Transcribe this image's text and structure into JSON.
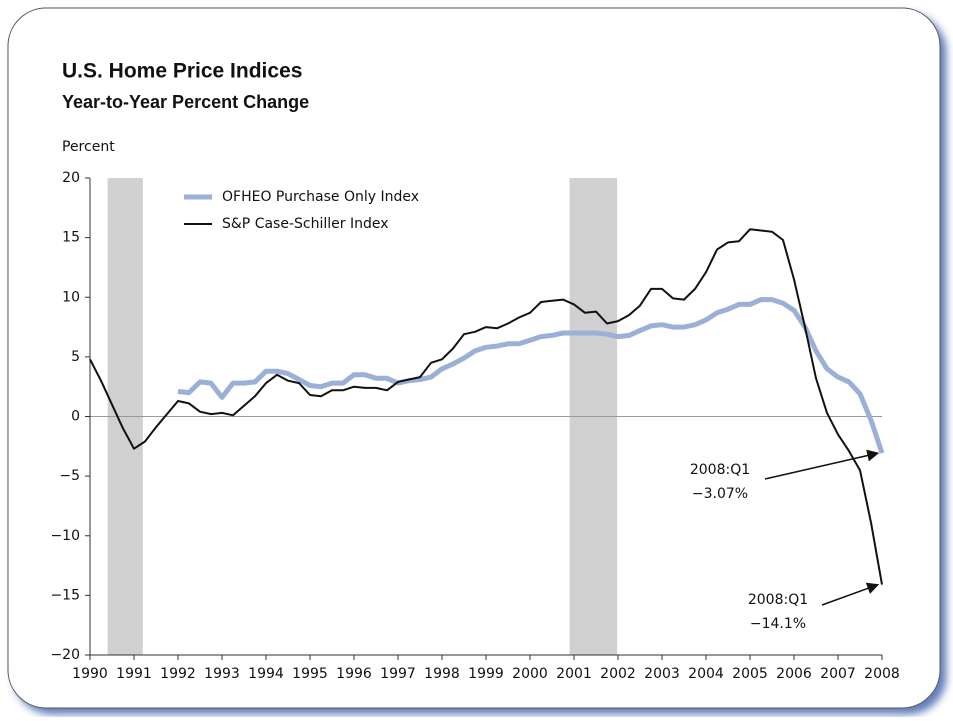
{
  "chart_data": {
    "type": "line",
    "title": "U.S. Home Price Indices",
    "subtitle": "Year-to-Year Percent Change",
    "y_label": "Percent",
    "x": [
      1990,
      1990.25,
      1990.5,
      1990.75,
      1991,
      1991.25,
      1991.5,
      1991.75,
      1992,
      1992.25,
      1992.5,
      1992.75,
      1993,
      1993.25,
      1993.5,
      1993.75,
      1994,
      1994.25,
      1994.5,
      1994.75,
      1995,
      1995.25,
      1995.5,
      1995.75,
      1996,
      1996.25,
      1996.5,
      1996.75,
      1997,
      1997.25,
      1997.5,
      1997.75,
      1998,
      1998.25,
      1998.5,
      1998.75,
      1999,
      1999.25,
      1999.5,
      1999.75,
      2000,
      2000.25,
      2000.5,
      2000.75,
      2001,
      2001.25,
      2001.5,
      2001.75,
      2002,
      2002.25,
      2002.5,
      2002.75,
      2003,
      2003.25,
      2003.5,
      2003.75,
      2004,
      2004.25,
      2004.5,
      2004.75,
      2005,
      2005.25,
      2005.5,
      2005.75,
      2006,
      2006.25,
      2006.5,
      2006.75,
      2007,
      2007.25,
      2007.5,
      2007.75,
      2008
    ],
    "series": [
      {
        "name": "OFHEO Purchase Only Index",
        "color": "#9ab0d6",
        "width": 5,
        "values": [
          null,
          null,
          null,
          null,
          null,
          null,
          null,
          null,
          2.1,
          2.0,
          2.9,
          2.8,
          1.6,
          2.8,
          2.8,
          2.9,
          3.8,
          3.8,
          3.6,
          3.1,
          2.6,
          2.5,
          2.8,
          2.8,
          3.5,
          3.5,
          3.2,
          3.2,
          2.8,
          3.0,
          3.1,
          3.3,
          4.0,
          4.4,
          4.9,
          5.5,
          5.8,
          5.9,
          6.1,
          6.1,
          6.4,
          6.7,
          6.8,
          7.0,
          7.0,
          7.0,
          7.0,
          6.9,
          6.7,
          6.8,
          7.2,
          7.6,
          7.7,
          7.5,
          7.5,
          7.7,
          8.1,
          8.7,
          9.0,
          9.4,
          9.4,
          9.8,
          9.8,
          9.5,
          8.9,
          7.5,
          5.5,
          4.0,
          3.3,
          2.9,
          1.9,
          -0.3,
          -3.07
        ]
      },
      {
        "name": "S&P Case-Schiller Index",
        "color": "#111111",
        "width": 2,
        "values": [
          4.8,
          3.0,
          1.0,
          -1.0,
          -2.7,
          -2.1,
          -0.9,
          0.2,
          1.3,
          1.1,
          0.4,
          0.2,
          0.3,
          0.1,
          0.9,
          1.7,
          2.8,
          3.5,
          3.0,
          2.8,
          1.8,
          1.7,
          2.2,
          2.2,
          2.5,
          2.4,
          2.4,
          2.2,
          2.9,
          3.1,
          3.3,
          4.5,
          4.8,
          5.7,
          6.9,
          7.1,
          7.5,
          7.4,
          7.8,
          8.3,
          8.7,
          9.6,
          9.7,
          9.8,
          9.4,
          8.7,
          8.8,
          7.8,
          8.0,
          8.5,
          9.3,
          10.7,
          10.7,
          9.9,
          9.8,
          10.7,
          12.1,
          14.0,
          14.6,
          14.7,
          15.7,
          15.6,
          15.5,
          14.8,
          11.5,
          7.5,
          3.2,
          0.3,
          -1.5,
          -2.9,
          -4.5,
          -8.9,
          -14.1
        ]
      }
    ],
    "recessions": [
      [
        1990.4,
        1991.2
      ],
      [
        2000.9,
        2001.98
      ]
    ],
    "annotations": [
      {
        "series": 0,
        "lines": [
          "2008:Q1",
          "−3.07%"
        ]
      },
      {
        "series": 1,
        "lines": [
          "2008:Q1",
          "−14.1%"
        ]
      }
    ],
    "xlim": [
      1990,
      2008
    ],
    "xticks": [
      1990,
      1991,
      1992,
      1993,
      1994,
      1995,
      1996,
      1997,
      1998,
      1999,
      2000,
      2001,
      2002,
      2003,
      2004,
      2005,
      2006,
      2007,
      2008
    ],
    "ylim": [
      -20,
      20
    ],
    "yticks": [
      {
        "value": -20,
        "label": "−20"
      },
      {
        "value": -15,
        "label": "−15"
      },
      {
        "value": -10,
        "label": "−10"
      },
      {
        "value": -5,
        "label": "−5"
      },
      0,
      5,
      10,
      15,
      20
    ]
  }
}
